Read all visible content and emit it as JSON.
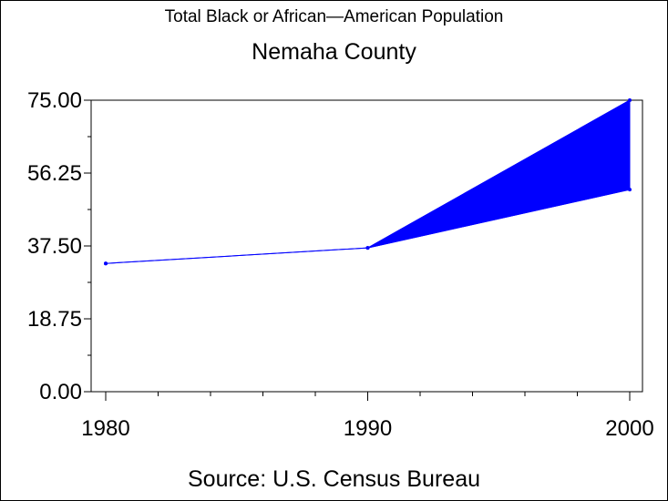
{
  "chart_data": {
    "type": "line",
    "title": "Total Black or African—American Population",
    "subtitle": "Nemaha County",
    "source": "Source: U.S. Census Bureau",
    "x": [
      1980,
      1990,
      2000
    ],
    "x_tick_labels": [
      "1980",
      "1990",
      "2000"
    ],
    "xlim": [
      1980,
      2000
    ],
    "ylim": [
      0,
      75
    ],
    "y_ticks": [
      0,
      18.75,
      37.5,
      56.25,
      75
    ],
    "y_tick_labels": [
      "0.00",
      "18.75",
      "37.50",
      "56.25",
      "75.00"
    ],
    "series": [
      {
        "values": [
          33,
          37,
          52
        ]
      },
      {
        "values": [
          33,
          37,
          75
        ]
      }
    ],
    "fill_between": {
      "x_from": 1990,
      "x_to": 2000,
      "lower_series": 0,
      "upper_series": 1
    },
    "color": "#0000ff",
    "grid": false
  }
}
